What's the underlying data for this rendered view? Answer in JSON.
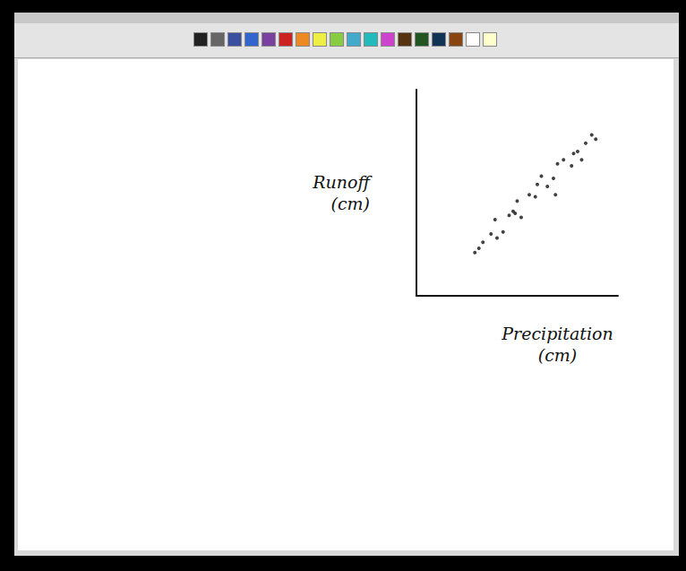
{
  "chart_data": {
    "type": "scatter",
    "x_label": "Precipitation (cm)",
    "y_label": "Runoff (cm)",
    "x": [
      29,
      31,
      33,
      37,
      40,
      43,
      39,
      46,
      49,
      52,
      50,
      56,
      59,
      60,
      65,
      62,
      68,
      70,
      73,
      78,
      80,
      82,
      84,
      87,
      89,
      77,
      69,
      48
    ],
    "values": [
      21,
      23,
      26,
      30,
      28,
      31,
      37,
      39,
      40,
      38,
      46,
      49,
      48,
      54,
      53,
      58,
      57,
      64,
      66,
      69,
      70,
      66,
      74,
      78,
      76,
      63,
      49,
      41
    ],
    "xlim": [
      0,
      100
    ],
    "ylim": [
      0,
      100
    ],
    "color": "#111111",
    "marker": "circle",
    "grid": false,
    "tick_labels": false
  }
}
